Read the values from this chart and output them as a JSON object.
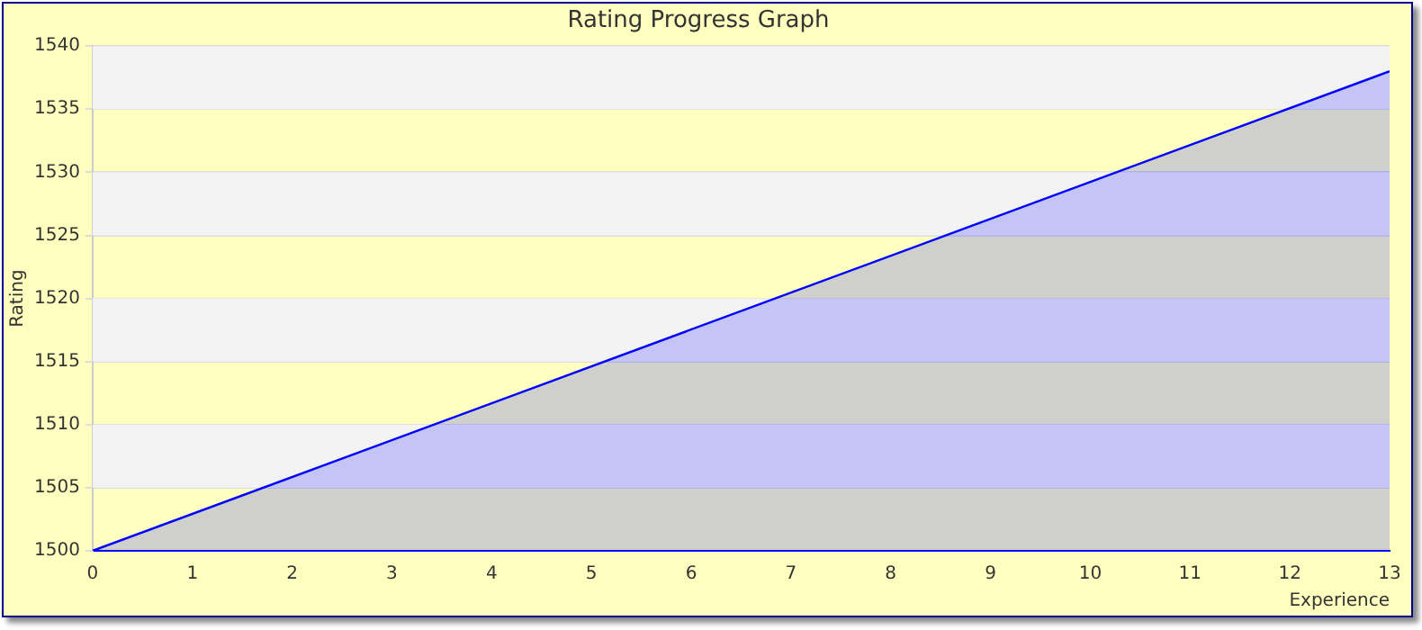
{
  "chart_data": {
    "type": "area",
    "title": "Rating Progress Graph",
    "xlabel": "Experience",
    "ylabel": "Rating",
    "x": [
      0,
      13
    ],
    "series": [
      {
        "color": "#0000ff",
        "values": [
          1500,
          1538
        ]
      }
    ],
    "xlim": [
      0,
      13
    ],
    "xticks": [
      0,
      1,
      2,
      3,
      4,
      5,
      6,
      7,
      8,
      9,
      10,
      11,
      12,
      13
    ],
    "ylim": [
      1500,
      1540
    ],
    "yticks": [
      1500,
      1505,
      1510,
      1515,
      1520,
      1525,
      1530,
      1535,
      1540
    ],
    "grid": "y",
    "legend": false,
    "marker": "none",
    "line_style": "solid"
  }
}
